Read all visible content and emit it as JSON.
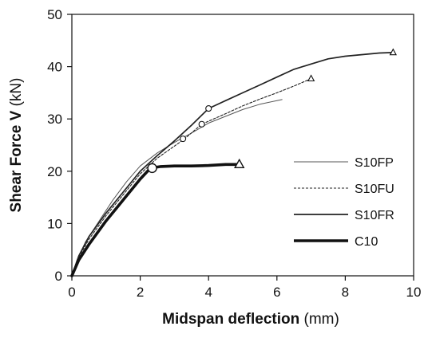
{
  "chart_data": {
    "type": "line",
    "xlabel": "Midspan deflection",
    "xlabel_unit": "(mm)",
    "ylabel": "Shear Force V",
    "ylabel_unit": "(kN)",
    "xlim": [
      0,
      10
    ],
    "ylim": [
      0,
      50
    ],
    "xticks": [
      0,
      2,
      4,
      6,
      8,
      10
    ],
    "yticks": [
      0,
      10,
      20,
      30,
      40,
      50
    ],
    "grid": false,
    "legend_position": "right",
    "series": [
      {
        "name": "S10FP",
        "style": "thin-solid",
        "points": [
          [
            0,
            0
          ],
          [
            0.15,
            3
          ],
          [
            0.4,
            6.5
          ],
          [
            0.8,
            10.5
          ],
          [
            1.2,
            14.5
          ],
          [
            1.6,
            18
          ],
          [
            2.0,
            21
          ],
          [
            2.5,
            23.5
          ],
          [
            3.0,
            25.5
          ],
          [
            3.5,
            27.3
          ],
          [
            4.0,
            29.2
          ],
          [
            4.5,
            30.5
          ],
          [
            5.0,
            31.8
          ],
          [
            5.5,
            32.8
          ],
          [
            6.0,
            33.5
          ],
          [
            6.15,
            33.7
          ]
        ],
        "markers": [
          {
            "x": 4.0,
            "y": 32,
            "shape": "circle"
          }
        ]
      },
      {
        "name": "S10FU",
        "style": "dashed",
        "points": [
          [
            0,
            0
          ],
          [
            0.2,
            3.5
          ],
          [
            0.5,
            7
          ],
          [
            1.0,
            11.5
          ],
          [
            1.5,
            15.5
          ],
          [
            2.0,
            19.5
          ],
          [
            2.5,
            22.5
          ],
          [
            3.0,
            24.8
          ],
          [
            3.3,
            26.2
          ],
          [
            3.8,
            29
          ],
          [
            4.5,
            31
          ],
          [
            5.0,
            32.5
          ],
          [
            5.5,
            33.8
          ],
          [
            6.0,
            35
          ],
          [
            6.5,
            36.3
          ],
          [
            7.0,
            37.7
          ]
        ],
        "markers": [
          {
            "x": 3.25,
            "y": 26.2,
            "shape": "circle"
          },
          {
            "x": 3.8,
            "y": 29,
            "shape": "circle"
          },
          {
            "x": 7.0,
            "y": 37.7,
            "shape": "triangle"
          }
        ]
      },
      {
        "name": "S10FR",
        "style": "solid",
        "points": [
          [
            0,
            0
          ],
          [
            0.2,
            3.8
          ],
          [
            0.5,
            7.5
          ],
          [
            1.0,
            12
          ],
          [
            1.5,
            16
          ],
          [
            2.0,
            20
          ],
          [
            2.5,
            23
          ],
          [
            3.0,
            25.8
          ],
          [
            3.5,
            28.8
          ],
          [
            4.0,
            32
          ],
          [
            4.5,
            33.5
          ],
          [
            5.0,
            35
          ],
          [
            5.5,
            36.5
          ],
          [
            6.0,
            38
          ],
          [
            6.5,
            39.5
          ],
          [
            7.0,
            40.5
          ],
          [
            7.5,
            41.5
          ],
          [
            8.0,
            42
          ],
          [
            8.5,
            42.3
          ],
          [
            9.0,
            42.6
          ],
          [
            9.4,
            42.7
          ]
        ],
        "markers": [
          {
            "x": 9.4,
            "y": 42.7,
            "shape": "triangle"
          }
        ]
      },
      {
        "name": "C10",
        "style": "thick-solid",
        "points": [
          [
            0,
            0
          ],
          [
            0.2,
            3
          ],
          [
            0.5,
            6
          ],
          [
            1.0,
            10.5
          ],
          [
            1.5,
            14.5
          ],
          [
            2.0,
            18.5
          ],
          [
            2.3,
            20.6
          ],
          [
            2.6,
            20.9
          ],
          [
            3.0,
            21
          ],
          [
            3.5,
            21
          ],
          [
            4.0,
            21.1
          ],
          [
            4.5,
            21.3
          ],
          [
            4.9,
            21.3
          ]
        ],
        "markers": [
          {
            "x": 2.35,
            "y": 20.6,
            "shape": "circle"
          },
          {
            "x": 4.9,
            "y": 21.3,
            "shape": "triangle"
          }
        ]
      }
    ]
  }
}
